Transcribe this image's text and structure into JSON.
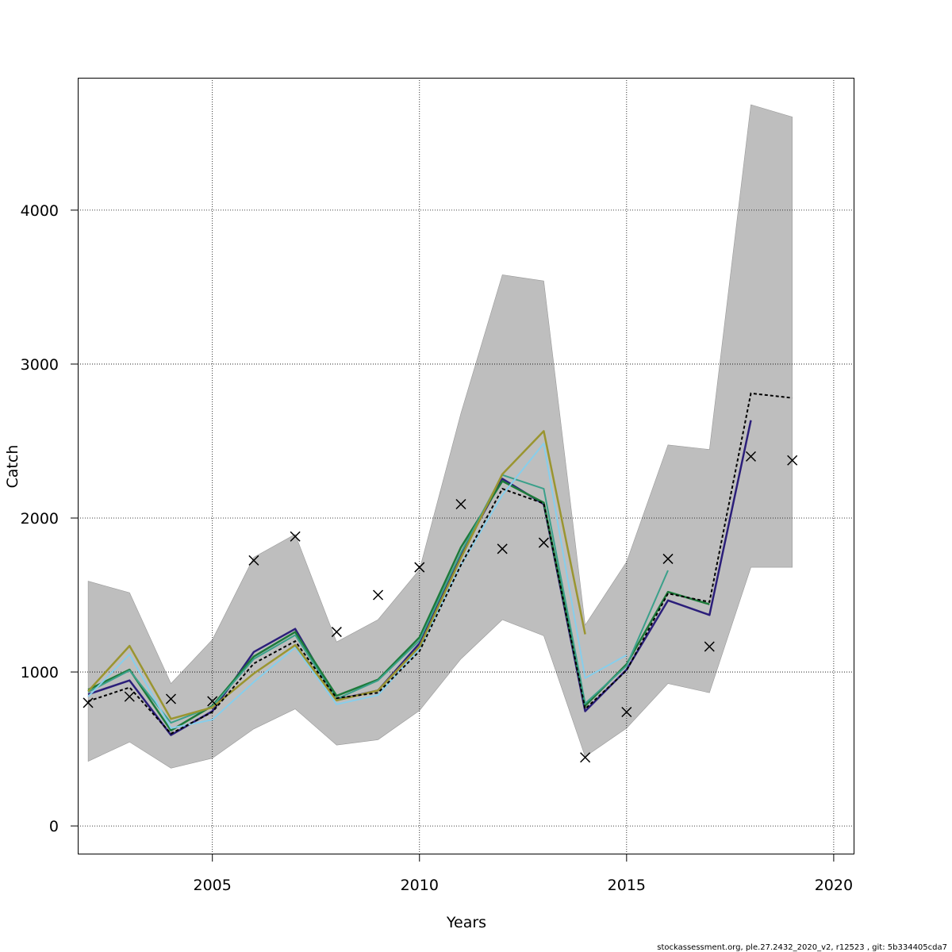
{
  "chart_data": {
    "type": "line",
    "xlabel": "Years",
    "ylabel": "Catch",
    "xlim": [
      2001.75,
      2020.5
    ],
    "ylim": [
      -185,
      4860
    ],
    "x_ticks": [
      2005,
      2010,
      2015,
      2020
    ],
    "y_ticks": [
      0,
      1000,
      2000,
      3000,
      4000
    ],
    "grid": true,
    "footer": "stockassessment.org, ple.27.2432_2020_v2, r12523 , git: 5b334405cda7",
    "colors": {
      "band": "#bebebe",
      "observed": "#000000",
      "base": "#000000"
    },
    "x": [
      2002,
      2003,
      2004,
      2005,
      2006,
      2007,
      2008,
      2009,
      2010,
      2011,
      2012,
      2013,
      2014,
      2015,
      2016,
      2017,
      2018,
      2019
    ],
    "band": {
      "lower": [
        420,
        545,
        375,
        440,
        630,
        760,
        525,
        560,
        750,
        1085,
        1340,
        1235,
        450,
        635,
        925,
        865,
        1680,
        1680
      ],
      "upper": [
        1590,
        1515,
        925,
        1210,
        1745,
        1895,
        1195,
        1340,
        1665,
        2680,
        3580,
        3540,
        1305,
        1715,
        2475,
        2445,
        4685,
        4605
      ]
    },
    "observed": [
      800,
      840,
      825,
      810,
      1725,
      1880,
      1260,
      1500,
      1680,
      2090,
      1800,
      1840,
      445,
      740,
      1735,
      1165,
      2400,
      2375
    ],
    "base": [
      810,
      900,
      600,
      740,
      1055,
      1200,
      830,
      865,
      1135,
      1695,
      2190,
      2095,
      760,
      1010,
      1510,
      1455,
      2810,
      2780
    ],
    "retro": [
      {
        "color": "#2b1e7a",
        "width": 2.5,
        "values": [
          855,
          945,
          590,
          745,
          1130,
          1280,
          820,
          880,
          1185,
          1765,
          2255,
          2090,
          745,
          1015,
          1465,
          1370,
          2635
        ]
      },
      {
        "color": "#1d7a3a",
        "width": 2.5,
        "values": [
          885,
          1015,
          620,
          780,
          1100,
          1260,
          845,
          950,
          1225,
          1810,
          2240,
          2100,
          780,
          1050,
          1520,
          1440
        ]
      },
      {
        "color": "#3aa08a",
        "width": 2,
        "values": [
          870,
          1010,
          670,
          775,
          1085,
          1240,
          825,
          945,
          1205,
          1775,
          2280,
          2190,
          795,
          1040,
          1660
        ]
      },
      {
        "color": "#87ceeb",
        "width": 2,
        "values": [
          840,
          1115,
          635,
          690,
          935,
          1160,
          790,
          850,
          1150,
          1695,
          2150,
          2485,
          960,
          1110
        ]
      },
      {
        "color": "#9a9530",
        "width": 2.5,
        "values": [
          875,
          1170,
          695,
          770,
          990,
          1175,
          815,
          880,
          1165,
          1740,
          2285,
          2565,
          1245
        ]
      }
    ]
  }
}
